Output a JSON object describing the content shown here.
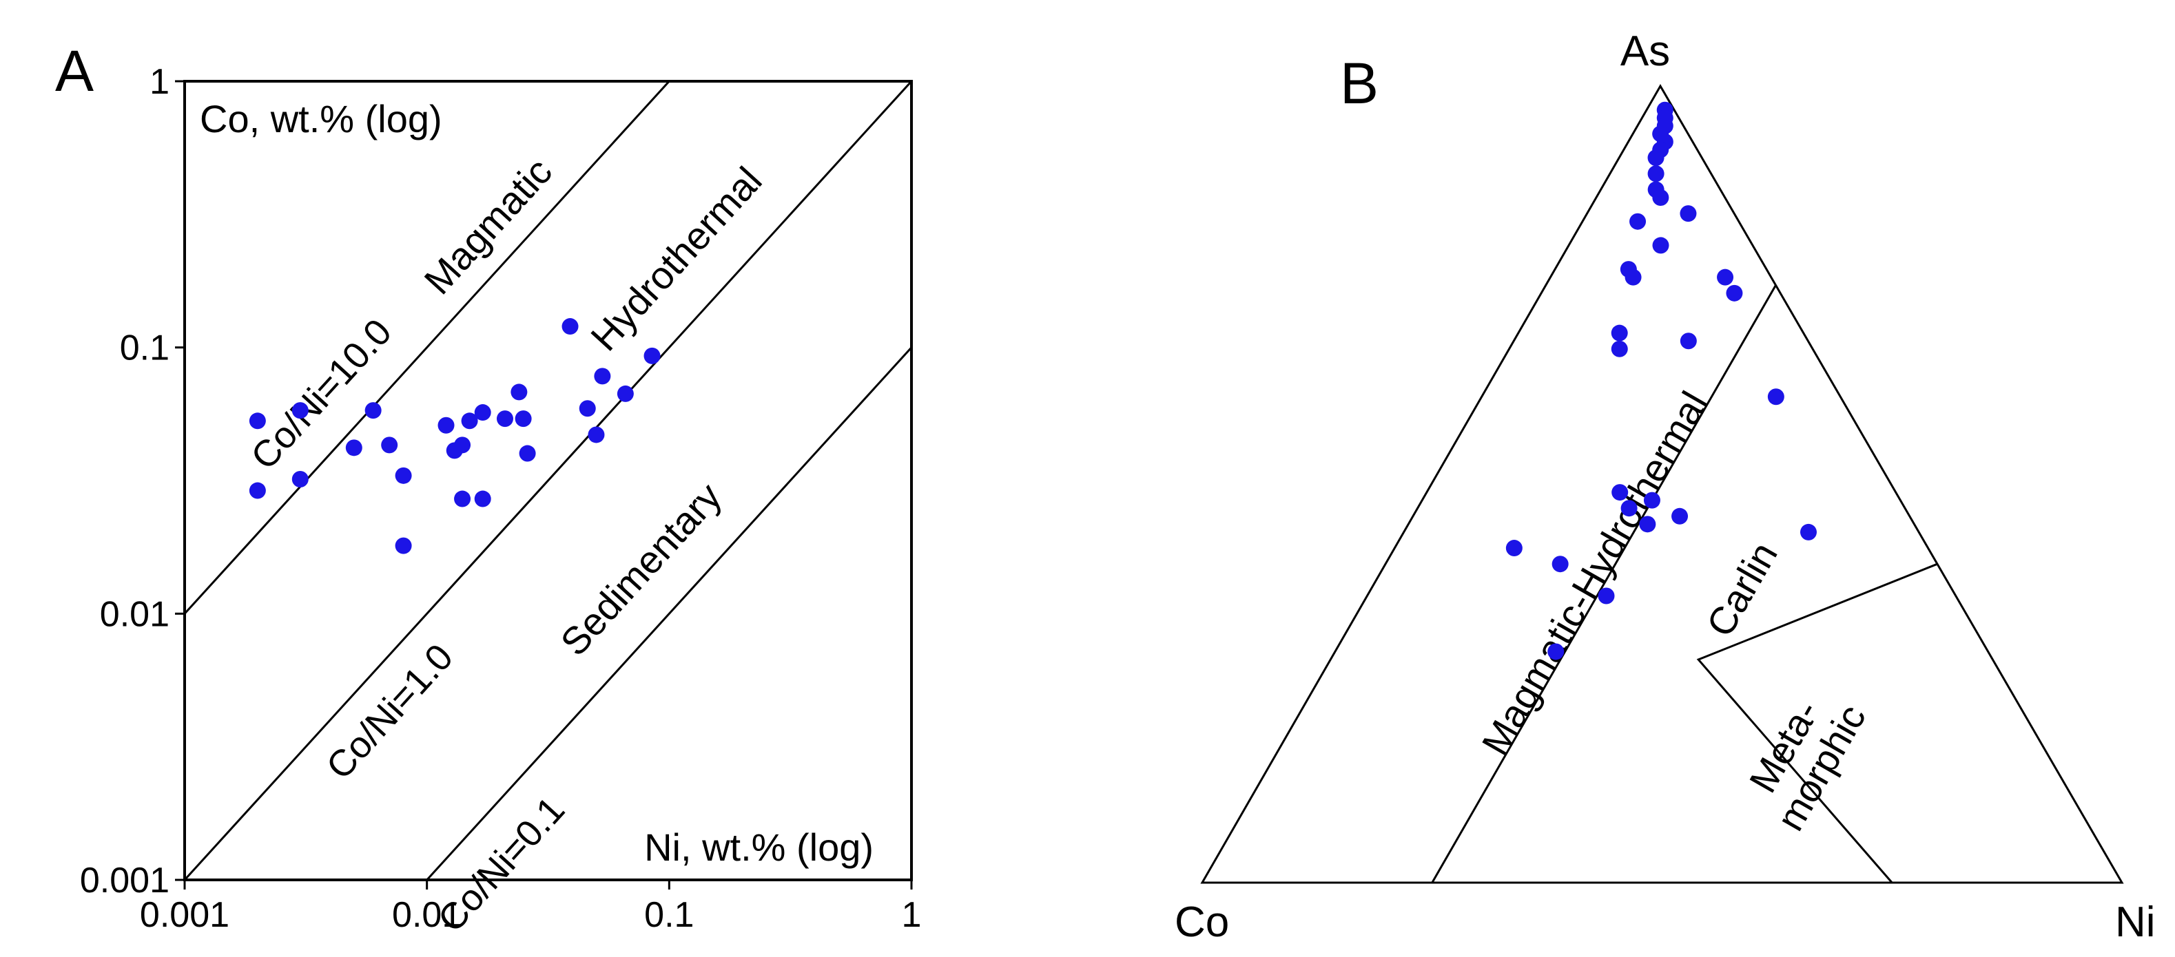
{
  "chart_data": [
    {
      "type": "scatter",
      "panel_label": "A",
      "xscale": "log",
      "yscale": "log",
      "xlim": [
        0.001,
        1
      ],
      "ylim": [
        0.001,
        1
      ],
      "xticks": [
        {
          "value": 0.001,
          "label": "0.001"
        },
        {
          "value": 0.01,
          "label": "0.01"
        },
        {
          "value": 0.1,
          "label": "0.1"
        },
        {
          "value": 1,
          "label": "1"
        }
      ],
      "yticks": [
        {
          "value": 0.001,
          "label": "0.001"
        },
        {
          "value": 0.01,
          "label": "0.01"
        },
        {
          "value": 0.1,
          "label": "0.1"
        },
        {
          "value": 1,
          "label": "1"
        }
      ],
      "ylabel": "Co, wt.% (log)",
      "xlabel": "Ni, wt.% (log)",
      "color": "#1c14e6",
      "ratio_lines": [
        {
          "ratio": 10.0,
          "label": "Co/Ni=10.0"
        },
        {
          "ratio": 1.0,
          "label": "Co/Ni=1.0"
        },
        {
          "ratio": 0.1,
          "label": "Co/Ni=0.1"
        }
      ],
      "fields": [
        {
          "key": "magmatic",
          "label": "Magmatic"
        },
        {
          "key": "hydrothermal",
          "label": "Hydrothermal"
        },
        {
          "key": "sedimentary",
          "label": "Sedimentary"
        }
      ],
      "points": [
        {
          "x": 0.002,
          "y": 0.053
        },
        {
          "x": 0.002,
          "y": 0.029
        },
        {
          "x": 0.003,
          "y": 0.058
        },
        {
          "x": 0.003,
          "y": 0.032
        },
        {
          "x": 0.005,
          "y": 0.042
        },
        {
          "x": 0.006,
          "y": 0.058
        },
        {
          "x": 0.007,
          "y": 0.043
        },
        {
          "x": 0.008,
          "y": 0.033
        },
        {
          "x": 0.008,
          "y": 0.018
        },
        {
          "x": 0.012,
          "y": 0.051
        },
        {
          "x": 0.013,
          "y": 0.041
        },
        {
          "x": 0.014,
          "y": 0.043
        },
        {
          "x": 0.014,
          "y": 0.027
        },
        {
          "x": 0.015,
          "y": 0.053
        },
        {
          "x": 0.017,
          "y": 0.057
        },
        {
          "x": 0.017,
          "y": 0.027
        },
        {
          "x": 0.021,
          "y": 0.054
        },
        {
          "x": 0.024,
          "y": 0.068
        },
        {
          "x": 0.025,
          "y": 0.054
        },
        {
          "x": 0.026,
          "y": 0.04
        },
        {
          "x": 0.039,
          "y": 0.12
        },
        {
          "x": 0.046,
          "y": 0.059
        },
        {
          "x": 0.05,
          "y": 0.047
        },
        {
          "x": 0.053,
          "y": 0.078
        },
        {
          "x": 0.066,
          "y": 0.067
        },
        {
          "x": 0.085,
          "y": 0.093
        }
      ]
    },
    {
      "type": "scatter",
      "subtype": "ternary",
      "panel_label": "B",
      "vertices": {
        "top": "As",
        "left": "Co",
        "right": "Ni"
      },
      "color": "#1c14e6",
      "fields": [
        {
          "key": "magmatic_hydrothermal",
          "label": "Magmatic-Hydrothermal"
        },
        {
          "key": "carlin",
          "label": "Carlin"
        },
        {
          "key": "metamorphic",
          "label": "Meta-\nmorphic"
        }
      ],
      "boundaries": [
        [
          {
            "As": 0.75,
            "Co": 0.0,
            "Ni": 0.25
          },
          {
            "As": 0.0,
            "Co": 0.75,
            "Ni": 0.25
          }
        ],
        [
          {
            "As": 0.4,
            "Co": 0.0,
            "Ni": 0.6
          },
          {
            "As": 0.28,
            "Co": 0.32,
            "Ni": 0.4
          },
          {
            "As": 0.0,
            "Co": 0.25,
            "Ni": 0.75
          }
        ]
      ],
      "points": [
        {
          "As": 0.97,
          "Co": 0.01,
          "Ni": 0.02
        },
        {
          "As": 0.96,
          "Co": 0.015,
          "Ni": 0.025
        },
        {
          "As": 0.95,
          "Co": 0.02,
          "Ni": 0.03
        },
        {
          "As": 0.94,
          "Co": 0.03,
          "Ni": 0.03
        },
        {
          "As": 0.93,
          "Co": 0.03,
          "Ni": 0.04
        },
        {
          "As": 0.92,
          "Co": 0.04,
          "Ni": 0.04
        },
        {
          "As": 0.91,
          "Co": 0.05,
          "Ni": 0.04
        },
        {
          "As": 0.89,
          "Co": 0.06,
          "Ni": 0.05
        },
        {
          "As": 0.87,
          "Co": 0.07,
          "Ni": 0.06
        },
        {
          "As": 0.86,
          "Co": 0.07,
          "Ni": 0.07
        },
        {
          "As": 0.84,
          "Co": 0.05,
          "Ni": 0.11
        },
        {
          "As": 0.83,
          "Co": 0.11,
          "Ni": 0.06
        },
        {
          "As": 0.8,
          "Co": 0.1,
          "Ni": 0.1
        },
        {
          "As": 0.77,
          "Co": 0.15,
          "Ni": 0.08
        },
        {
          "As": 0.76,
          "Co": 0.15,
          "Ni": 0.09
        },
        {
          "As": 0.76,
          "Co": 0.05,
          "Ni": 0.19
        },
        {
          "As": 0.74,
          "Co": 0.05,
          "Ni": 0.21
        },
        {
          "As": 0.69,
          "Co": 0.2,
          "Ni": 0.11
        },
        {
          "As": 0.67,
          "Co": 0.21,
          "Ni": 0.12
        },
        {
          "As": 0.68,
          "Co": 0.13,
          "Ni": 0.19
        },
        {
          "As": 0.61,
          "Co": 0.07,
          "Ni": 0.32
        },
        {
          "As": 0.49,
          "Co": 0.3,
          "Ni": 0.21
        },
        {
          "As": 0.48,
          "Co": 0.27,
          "Ni": 0.25
        },
        {
          "As": 0.47,
          "Co": 0.3,
          "Ni": 0.23
        },
        {
          "As": 0.46,
          "Co": 0.25,
          "Ni": 0.29
        },
        {
          "As": 0.45,
          "Co": 0.29,
          "Ni": 0.26
        },
        {
          "As": 0.44,
          "Co": 0.12,
          "Ni": 0.44
        },
        {
          "As": 0.42,
          "Co": 0.45,
          "Ni": 0.13
        },
        {
          "As": 0.4,
          "Co": 0.41,
          "Ni": 0.19
        },
        {
          "As": 0.36,
          "Co": 0.38,
          "Ni": 0.26
        },
        {
          "As": 0.29,
          "Co": 0.47,
          "Ni": 0.24
        }
      ]
    }
  ]
}
